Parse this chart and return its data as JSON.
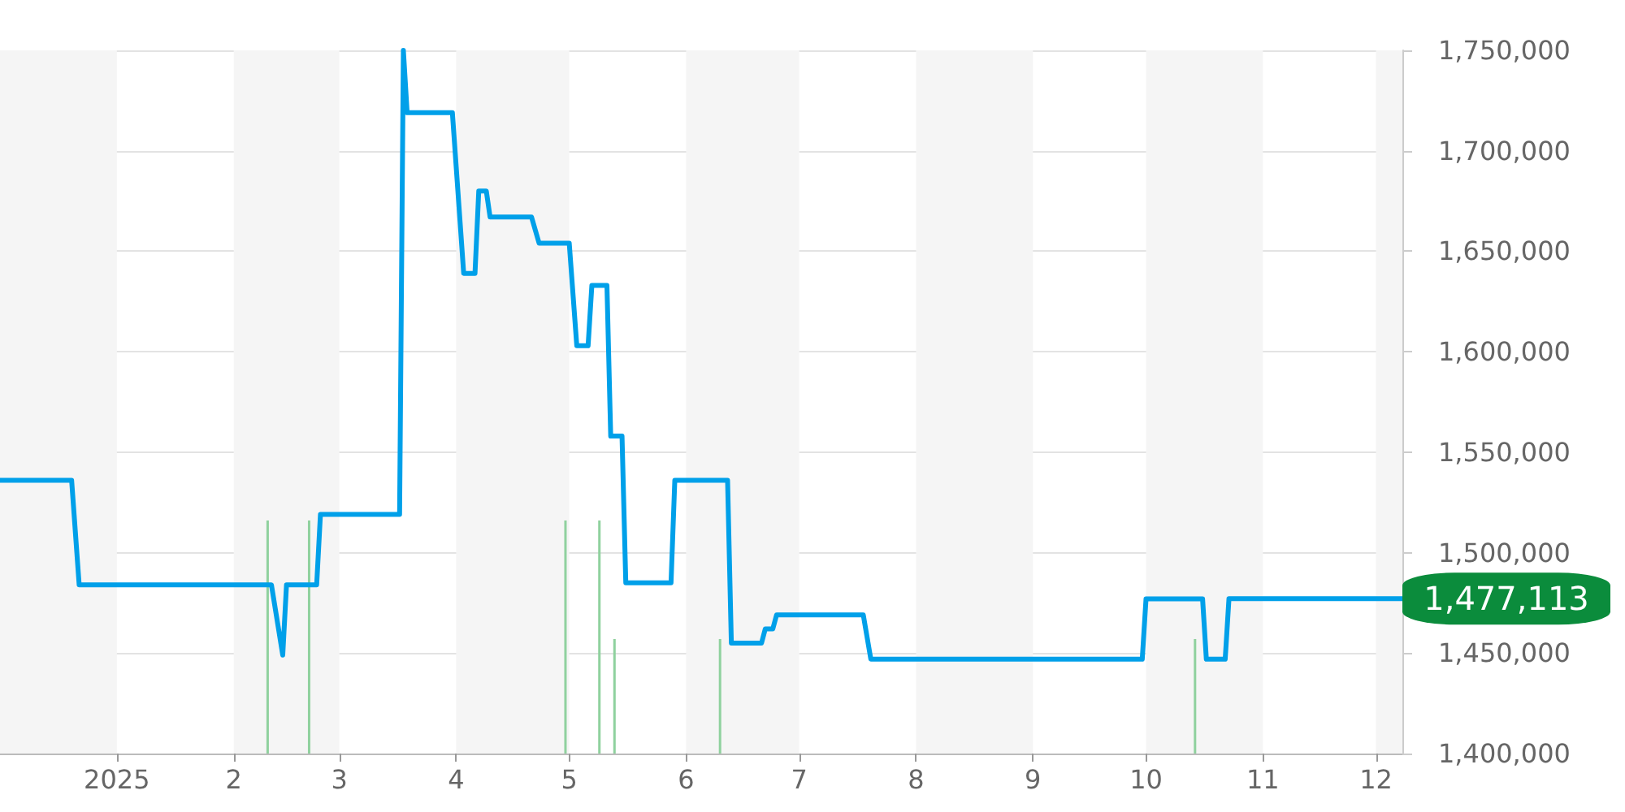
{
  "chart_data": {
    "type": "line",
    "xlim": [
      "2024-12-01",
      "2025-12-08"
    ],
    "ylim": [
      1400000,
      1750000
    ],
    "xticks": [
      {
        "value": "2025-01-01",
        "label": "2025"
      },
      {
        "value": "2025-02-01",
        "label": "2"
      },
      {
        "value": "2025-03-01",
        "label": "3"
      },
      {
        "value": "2025-04-01",
        "label": "4"
      },
      {
        "value": "2025-05-01",
        "label": "5"
      },
      {
        "value": "2025-06-01",
        "label": "6"
      },
      {
        "value": "2025-07-01",
        "label": "7"
      },
      {
        "value": "2025-08-01",
        "label": "8"
      },
      {
        "value": "2025-09-01",
        "label": "9"
      },
      {
        "value": "2025-10-01",
        "label": "10"
      },
      {
        "value": "2025-11-01",
        "label": "11"
      },
      {
        "value": "2025-12-01",
        "label": "12"
      }
    ],
    "yticks": [
      {
        "value": 1400000,
        "label": "1,400,000"
      },
      {
        "value": 1450000,
        "label": "1,450,000"
      },
      {
        "value": 1500000,
        "label": "1,500,000"
      },
      {
        "value": 1550000,
        "label": "1,550,000"
      },
      {
        "value": 1600000,
        "label": "1,600,000"
      },
      {
        "value": 1650000,
        "label": "1,650,000"
      },
      {
        "value": 1700000,
        "label": "1,700,000"
      },
      {
        "value": 1750000,
        "label": "1,750,000"
      }
    ],
    "grid": "y",
    "marker": "none",
    "line_style": "solid",
    "series": [
      {
        "color": "#00a0e9",
        "x": [
          "2024-12-01",
          "2024-12-20",
          "2024-12-22",
          "2025-02-11",
          "2025-02-14",
          "2025-02-15",
          "2025-02-23",
          "2025-02-24",
          "2025-03-17",
          "2025-03-18",
          "2025-03-19",
          "2025-03-31",
          "2025-04-03",
          "2025-04-06",
          "2025-04-07",
          "2025-04-09",
          "2025-04-10",
          "2025-04-21",
          "2025-04-23",
          "2025-05-01",
          "2025-05-03",
          "2025-05-06",
          "2025-05-07",
          "2025-05-11",
          "2025-05-12",
          "2025-05-15",
          "2025-05-16",
          "2025-05-28",
          "2025-05-29",
          "2025-06-12",
          "2025-06-13",
          "2025-06-21",
          "2025-06-22",
          "2025-06-24",
          "2025-06-25",
          "2025-07-18",
          "2025-07-20",
          "2025-09-30",
          "2025-10-01",
          "2025-10-16",
          "2025-10-17",
          "2025-10-22",
          "2025-10-23",
          "2025-12-08"
        ],
        "values": [
          1536000,
          1536000,
          1484000,
          1484000,
          1449000,
          1484000,
          1484000,
          1519000,
          1519000,
          1750000,
          1719000,
          1719000,
          1639000,
          1639000,
          1680000,
          1680000,
          1667000,
          1667000,
          1654000,
          1654000,
          1603000,
          1603000,
          1633000,
          1633000,
          1558000,
          1558000,
          1485000,
          1485000,
          1536000,
          1536000,
          1455000,
          1455000,
          1462000,
          1462000,
          1469000,
          1469000,
          1447000,
          1447000,
          1477000,
          1477000,
          1447000,
          1447000,
          1477113,
          1477113
        ]
      },
      {
        "type": "bar",
        "color": "#8fd19e",
        "x": [
          "2025-02-10",
          "2025-02-21",
          "2025-04-30",
          "2025-05-09",
          "2025-05-13",
          "2025-06-10",
          "2025-10-14"
        ],
        "values": [
          1516000,
          1516000,
          1516000,
          1516000,
          1457000,
          1457000,
          1457000
        ]
      }
    ],
    "bands": [
      {
        "axis": "x",
        "from": "2024-12-01",
        "to": "2025-01-01",
        "color": "#f5f5f5"
      },
      {
        "axis": "x",
        "from": "2025-02-01",
        "to": "2025-03-01",
        "color": "#f5f5f5"
      },
      {
        "axis": "x",
        "from": "2025-04-01",
        "to": "2025-05-01",
        "color": "#f5f5f5"
      },
      {
        "axis": "x",
        "from": "2025-06-01",
        "to": "2025-07-01",
        "color": "#f5f5f5"
      },
      {
        "axis": "x",
        "from": "2025-08-01",
        "to": "2025-09-01",
        "color": "#f5f5f5"
      },
      {
        "axis": "x",
        "from": "2025-10-01",
        "to": "2025-11-01",
        "color": "#f5f5f5"
      },
      {
        "axis": "x",
        "from": "2025-12-01",
        "to": "2025-12-08",
        "color": "#f5f5f5"
      }
    ],
    "annotations": [
      {
        "text": "1,477,113",
        "x": "2025-12-08",
        "y": 1477113
      }
    ]
  }
}
